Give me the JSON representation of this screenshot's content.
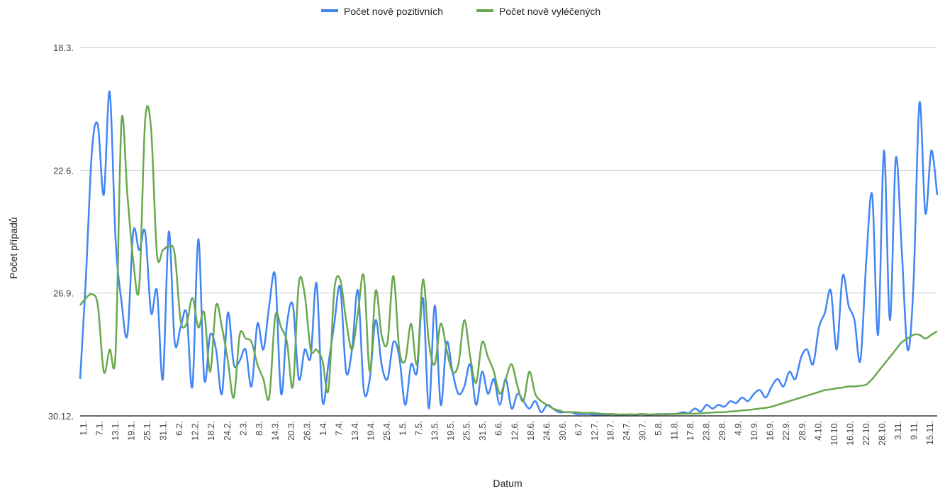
{
  "colors": {
    "positive": "#4285f4",
    "recovered": "#6aa84f",
    "grid": "#cccccc",
    "axis": "#333333"
  },
  "chart_data": {
    "type": "line",
    "xlabel": "Datum",
    "ylabel": "Počet případů",
    "legend_position": "top-center",
    "grid": true,
    "y_tick_labels": [
      "18.3.",
      "22.6.",
      "26.9.",
      "30.12."
    ],
    "x_tick_labels": [
      "1.1.",
      "7.1.",
      "13.1.",
      "19.1.",
      "25.1.",
      "31.1.",
      "6.2.",
      "12.2.",
      "18.2.",
      "24.2.",
      "2.3.",
      "8.3.",
      "14.3.",
      "20.3.",
      "26.3.",
      "1.4.",
      "7.4.",
      "13.4.",
      "19.4.",
      "25.4.",
      "1.5.",
      "7.5.",
      "13.5.",
      "19.5.",
      "25.5.",
      "31.5.",
      "6.6.",
      "12.6.",
      "18.6.",
      "24.6.",
      "30.6.",
      "6.7.",
      "12.7.",
      "18.7.",
      "24.7.",
      "30.7.",
      "5.8.",
      "11.8.",
      "17.8.",
      "23.8.",
      "29.8.",
      "4.9.",
      "10.9.",
      "16.9.",
      "22.9.",
      "28.9.",
      "4.10.",
      "10.10.",
      "16.10.",
      "22.10.",
      "28.10.",
      "3.11.",
      "9.11.",
      "15.11."
    ],
    "series": [
      {
        "name": "Počet nově pozitivních",
        "values": [
          0.1,
          0.38,
          0.72,
          0.79,
          0.6,
          0.88,
          0.48,
          0.31,
          0.22,
          0.5,
          0.45,
          0.5,
          0.28,
          0.34,
          0.1,
          0.5,
          0.2,
          0.24,
          0.28,
          0.08,
          0.48,
          0.1,
          0.22,
          0.18,
          0.06,
          0.28,
          0.14,
          0.15,
          0.18,
          0.08,
          0.25,
          0.18,
          0.3,
          0.38,
          0.06,
          0.25,
          0.3,
          0.1,
          0.18,
          0.16,
          0.36,
          0.04,
          0.14,
          0.25,
          0.35,
          0.12,
          0.18,
          0.34,
          0.07,
          0.1,
          0.26,
          0.14,
          0.1,
          0.2,
          0.16,
          0.03,
          0.14,
          0.12,
          0.32,
          0.02,
          0.3,
          0.03,
          0.2,
          0.12,
          0.06,
          0.08,
          0.14,
          0.03,
          0.12,
          0.06,
          0.1,
          0.03,
          0.1,
          0.02,
          0.06,
          0.04,
          0.02,
          0.04,
          0.01,
          0.03,
          0.02,
          0.01,
          0.01,
          0.01,
          0.005,
          0.005,
          0.005,
          0.003,
          0.003,
          0.003,
          0.004,
          0.003,
          0.003,
          0.004,
          0.003,
          0.005,
          0.003,
          0.004,
          0.005,
          0.004,
          0.005,
          0.006,
          0.01,
          0.008,
          0.02,
          0.012,
          0.03,
          0.02,
          0.03,
          0.025,
          0.04,
          0.035,
          0.05,
          0.04,
          0.06,
          0.07,
          0.05,
          0.08,
          0.1,
          0.08,
          0.12,
          0.1,
          0.16,
          0.18,
          0.14,
          0.24,
          0.28,
          0.34,
          0.18,
          0.38,
          0.3,
          0.26,
          0.15,
          0.42,
          0.6,
          0.22,
          0.72,
          0.26,
          0.7,
          0.45,
          0.18,
          0.36,
          0.85,
          0.55,
          0.72,
          0.6
        ]
      },
      {
        "name": "Počet nově vyléčených",
        "values": [
          0.3,
          0.32,
          0.33,
          0.3,
          0.12,
          0.18,
          0.17,
          0.8,
          0.6,
          0.42,
          0.35,
          0.8,
          0.78,
          0.44,
          0.45,
          0.46,
          0.44,
          0.26,
          0.25,
          0.32,
          0.24,
          0.28,
          0.12,
          0.3,
          0.24,
          0.15,
          0.05,
          0.22,
          0.21,
          0.2,
          0.14,
          0.1,
          0.05,
          0.27,
          0.24,
          0.2,
          0.08,
          0.36,
          0.33,
          0.18,
          0.18,
          0.15,
          0.07,
          0.34,
          0.37,
          0.26,
          0.18,
          0.28,
          0.38,
          0.12,
          0.34,
          0.22,
          0.2,
          0.38,
          0.18,
          0.15,
          0.25,
          0.14,
          0.37,
          0.2,
          0.14,
          0.25,
          0.18,
          0.12,
          0.14,
          0.26,
          0.16,
          0.09,
          0.2,
          0.16,
          0.12,
          0.06,
          0.1,
          0.14,
          0.08,
          0.04,
          0.12,
          0.06,
          0.04,
          0.03,
          0.02,
          0.015,
          0.01,
          0.01,
          0.01,
          0.008,
          0.008,
          0.008,
          0.006,
          0.005,
          0.005,
          0.004,
          0.004,
          0.004,
          0.004,
          0.005,
          0.004,
          0.004,
          0.004,
          0.005,
          0.005,
          0.005,
          0.006,
          0.006,
          0.006,
          0.007,
          0.008,
          0.009,
          0.01,
          0.01,
          0.012,
          0.013,
          0.015,
          0.016,
          0.018,
          0.02,
          0.022,
          0.025,
          0.03,
          0.035,
          0.04,
          0.045,
          0.05,
          0.055,
          0.06,
          0.065,
          0.07,
          0.072,
          0.075,
          0.077,
          0.08,
          0.08,
          0.082,
          0.085,
          0.1,
          0.12,
          0.14,
          0.16,
          0.18,
          0.2,
          0.21,
          0.22,
          0.22,
          0.21,
          0.22,
          0.23
        ]
      }
    ]
  }
}
